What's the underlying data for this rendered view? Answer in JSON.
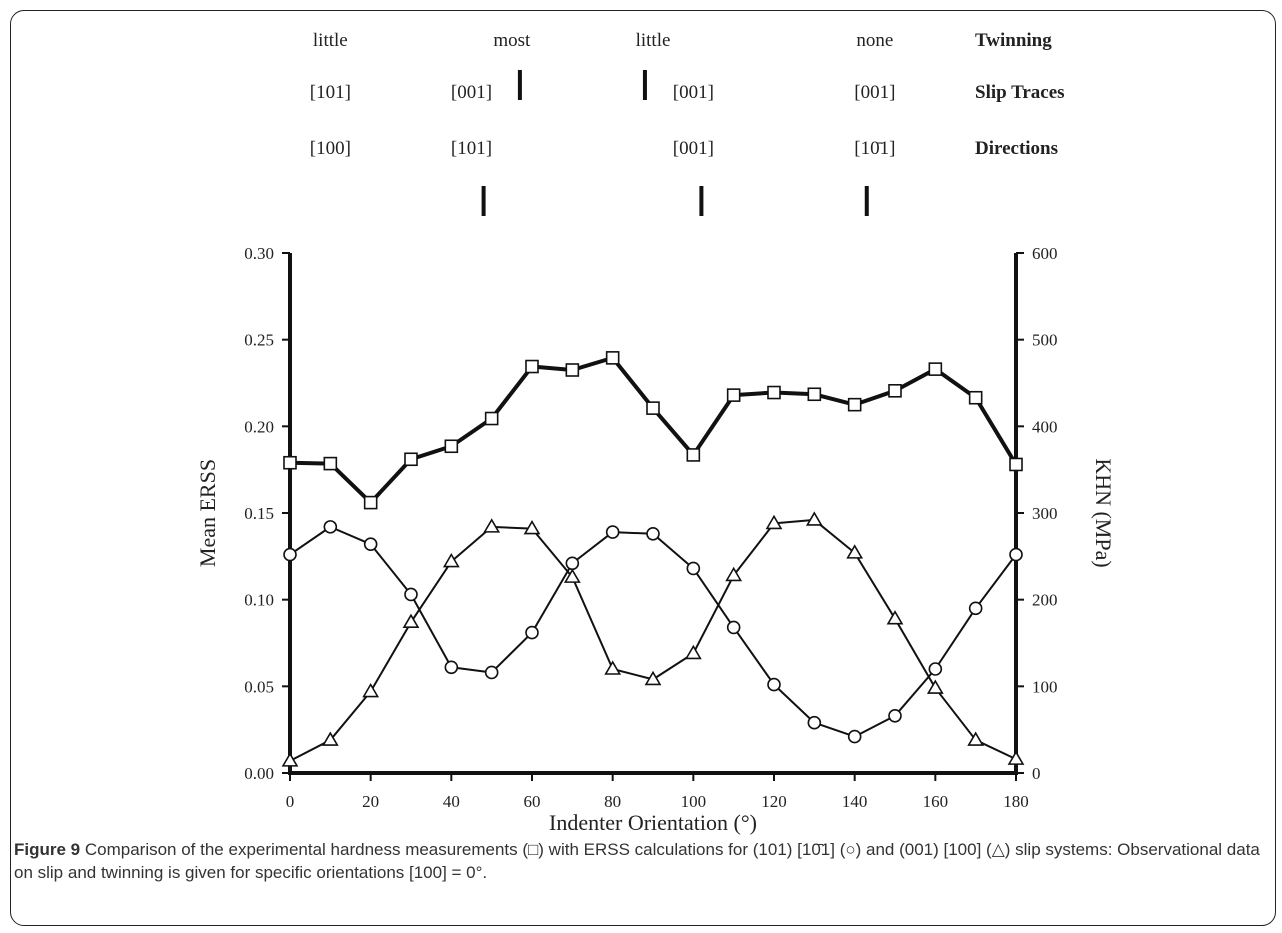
{
  "figure": {
    "caption_label": "Figure 9",
    "caption_text": "Comparison of the experimental hardness measurements (□) with ERSS calculations for (101) [10̄1] (○) and (001) [100] (△) slip systems: Observational data on slip and twinning is given for specific orientations [100] = 0°."
  },
  "annotations": {
    "rows": [
      {
        "label": "Twinning",
        "entries": [
          {
            "text": "little",
            "x": 10
          },
          {
            "text": "most",
            "x": 55
          },
          {
            "text": "little",
            "x": 90
          },
          {
            "text": "none",
            "x": 145
          }
        ]
      },
      {
        "label": "Slip Traces",
        "entries": [
          {
            "text": "[101]",
            "x": 10
          },
          {
            "text": "[001]",
            "x": 45
          },
          {
            "text": "[001]",
            "x": 100
          },
          {
            "text": "[001]",
            "x": 145
          }
        ]
      },
      {
        "label": "Directions",
        "entries": [
          {
            "text": "[100]",
            "x": 10
          },
          {
            "text": "[101]",
            "x": 45
          },
          {
            "text": "[001]",
            "x": 100
          },
          {
            "text": "[10̄1]",
            "x": 145
          }
        ]
      }
    ],
    "upper_tick_marks_deg": [
      57,
      88
    ],
    "lower_tick_marks_deg": [
      48,
      102,
      143
    ]
  },
  "chart_data": {
    "type": "line",
    "xlabel": "Indenter Orientation (°)",
    "ylabel": "Mean ERSS",
    "y2label": "KHN (MPa)",
    "xlim": [
      0,
      180
    ],
    "ylim": [
      0,
      0.3
    ],
    "y2lim": [
      0,
      600
    ],
    "x_ticks": [
      "0",
      "20",
      "40",
      "60",
      "80",
      "100",
      "120",
      "140",
      "160",
      "180"
    ],
    "y_ticks": [
      "0.00",
      "0.05",
      "0.10",
      "0.15",
      "0.20",
      "0.25",
      "0.30"
    ],
    "y2_ticks": [
      "0",
      "100",
      "200",
      "300",
      "400",
      "500",
      "600"
    ],
    "x": [
      0,
      10,
      20,
      30,
      40,
      50,
      60,
      70,
      80,
      90,
      100,
      110,
      120,
      130,
      140,
      150,
      160,
      170,
      180
    ],
    "grid": false,
    "legend": "none",
    "series": [
      {
        "marker": "square",
        "axis": "right",
        "color": "#111111",
        "values": [
          358,
          357,
          312,
          362,
          377,
          409,
          469,
          465,
          479,
          421,
          367,
          436,
          439,
          437,
          425,
          441,
          466,
          433,
          356
        ]
      },
      {
        "marker": "circle",
        "axis": "left",
        "color": "#111111",
        "values": [
          0.126,
          0.142,
          0.132,
          0.103,
          0.061,
          0.058,
          0.081,
          0.121,
          0.139,
          0.138,
          0.118,
          0.084,
          0.051,
          0.029,
          0.021,
          0.033,
          0.06,
          0.095,
          0.126
        ]
      },
      {
        "marker": "triangle",
        "axis": "left",
        "color": "#111111",
        "values": [
          0.007,
          0.019,
          0.047,
          0.087,
          0.122,
          0.142,
          0.141,
          0.113,
          0.06,
          0.054,
          0.069,
          0.114,
          0.144,
          0.146,
          0.127,
          0.089,
          0.049,
          0.019,
          0.008
        ]
      }
    ]
  }
}
